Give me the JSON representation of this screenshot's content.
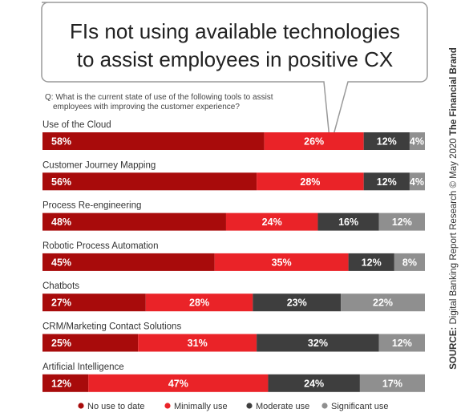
{
  "title_lines": [
    "FIs not using available technologies",
    "to assist employees in positive CX"
  ],
  "question_lines": [
    "Q: What is the current state of use of the following tools to assist",
    "employees with improving the customer experience?"
  ],
  "source": {
    "bold": "SOURCE:",
    "text": " Digital Banking Report Research © May 2020 ",
    "brand": "The Financial Brand"
  },
  "colors": {
    "no_use": "#a80b0b",
    "minimally": "#ea2328",
    "moderate": "#3e3e3e",
    "significant": "#8f8f8f"
  },
  "chart_data": {
    "type": "bar",
    "orientation": "horizontal",
    "stacked": true,
    "percent_of_total": true,
    "categories": [
      "Use of the Cloud",
      "Customer Journey Mapping",
      "Process Re-engineering",
      "Robotic Process Automation",
      "Chatbots",
      "CRM/Marketing Contact Solutions",
      "Artificial Intelligence"
    ],
    "series": [
      {
        "name": "No use to date",
        "color": "#a80b0b",
        "values": [
          58,
          56,
          48,
          45,
          27,
          25,
          12
        ]
      },
      {
        "name": "Minimally use",
        "color": "#ea2328",
        "values": [
          26,
          28,
          24,
          35,
          28,
          31,
          47
        ]
      },
      {
        "name": "Moderate use",
        "color": "#3e3e3e",
        "values": [
          12,
          12,
          16,
          12,
          23,
          32,
          24
        ]
      },
      {
        "name": "Significant use",
        "color": "#8f8f8f",
        "values": [
          4,
          4,
          12,
          8,
          22,
          12,
          17
        ]
      }
    ],
    "value_suffix": "%",
    "legend_position": "bottom",
    "grid": false
  }
}
